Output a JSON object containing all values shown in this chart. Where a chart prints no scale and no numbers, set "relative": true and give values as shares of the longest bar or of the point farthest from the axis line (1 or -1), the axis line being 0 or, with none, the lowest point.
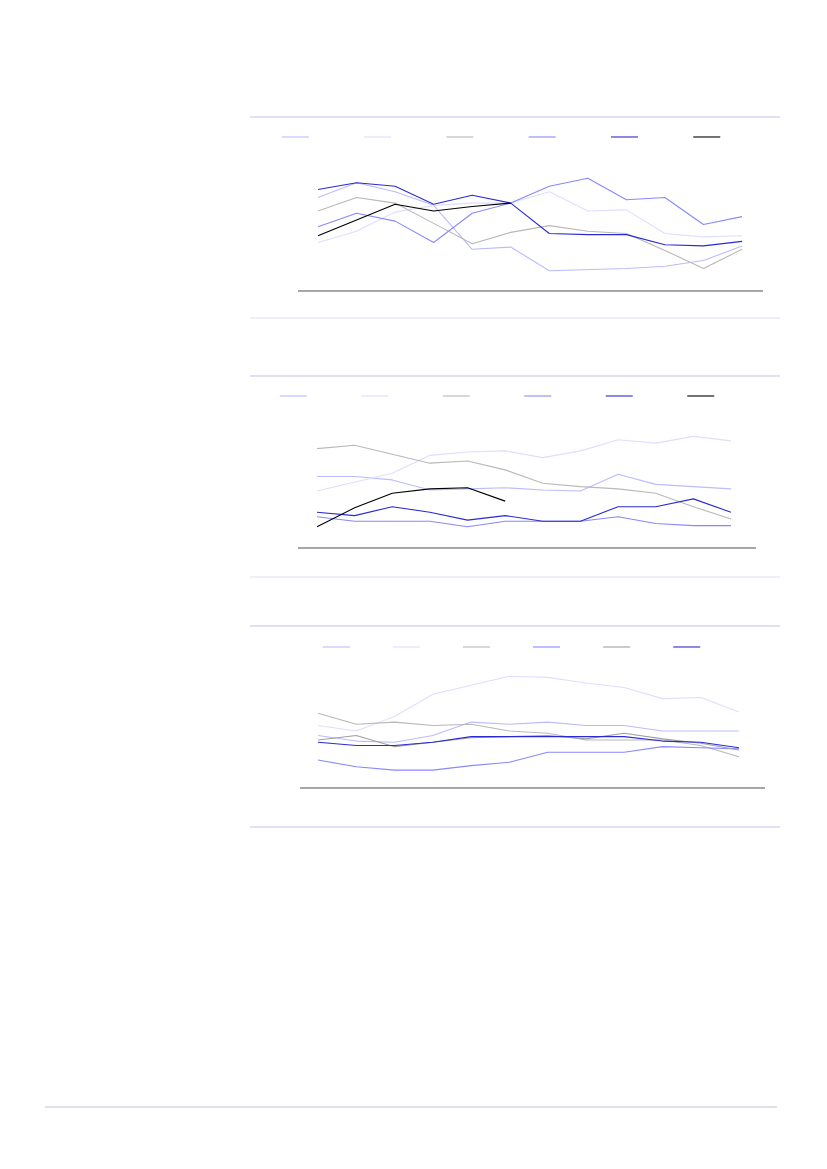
{
  "chart_data": [
    {
      "type": "line",
      "relative": true,
      "categories": [
        null,
        null,
        null,
        null,
        null,
        null,
        null,
        null,
        null,
        null,
        null,
        null
      ],
      "series": [
        {
          "color": "#bbbbff",
          "values": [
            0.83,
            0.96,
            0.88,
            0.76,
            0.37,
            0.39,
            0.18,
            0.19,
            0.2,
            0.22,
            0.27,
            0.4
          ]
        },
        {
          "color": "#dedeff",
          "values": [
            0.43,
            0.53,
            0.7,
            0.76,
            0.78,
            0.78,
            0.88,
            0.71,
            0.72,
            0.51,
            0.48,
            0.49
          ]
        },
        {
          "color": "#b8b8b8",
          "values": [
            0.71,
            0.83,
            0.78,
            0.6,
            0.42,
            0.52,
            0.58,
            0.53,
            0.51,
            0.36,
            0.2,
            0.37
          ]
        },
        {
          "color": "#8888ff",
          "values": [
            0.57,
            0.69,
            0.62,
            0.43,
            0.69,
            0.78,
            0.93,
            1.0,
            0.81,
            0.83,
            0.59,
            0.66
          ]
        },
        {
          "color": "#2a2ad4",
          "values": [
            0.9,
            0.96,
            0.93,
            0.77,
            0.85,
            0.78,
            0.51,
            0.5,
            0.5,
            0.41,
            0.4,
            0.44
          ]
        },
        {
          "color": "#000000",
          "values": [
            0.49,
            0.63,
            0.77,
            0.71,
            0.75,
            0.78,
            null,
            null,
            null,
            null,
            null,
            null
          ]
        }
      ]
    },
    {
      "type": "line",
      "relative": true,
      "categories": [
        null,
        null,
        null,
        null,
        null,
        null,
        null,
        null,
        null,
        null,
        null,
        null
      ],
      "series": [
        {
          "color": "#bbbbff",
          "values": [
            0.64,
            0.64,
            0.61,
            0.52,
            0.53,
            0.54,
            0.52,
            0.51,
            0.66,
            0.57,
            0.55,
            0.53
          ]
        },
        {
          "color": "#dedeff",
          "values": [
            0.51,
            0.59,
            0.67,
            0.83,
            0.86,
            0.87,
            0.81,
            0.87,
            0.97,
            0.94,
            1.0,
            0.96
          ]
        },
        {
          "color": "#b8b8b8",
          "values": [
            0.89,
            0.92,
            0.84,
            0.76,
            0.78,
            0.7,
            0.58,
            0.55,
            0.53,
            0.49,
            0.37,
            0.26
          ]
        },
        {
          "color": "#8888ff",
          "values": [
            0.28,
            0.24,
            0.24,
            0.24,
            0.19,
            0.24,
            0.24,
            0.24,
            0.28,
            0.22,
            0.2,
            0.2
          ]
        },
        {
          "color": "#2a2ad4",
          "values": [
            0.32,
            0.29,
            0.37,
            0.32,
            0.25,
            0.29,
            0.24,
            0.24,
            0.37,
            0.37,
            0.44,
            0.32
          ]
        },
        {
          "color": "#000000",
          "values": [
            0.19,
            0.36,
            0.49,
            0.53,
            0.54,
            0.42,
            null,
            null,
            null,
            null,
            null,
            null
          ]
        }
      ]
    },
    {
      "type": "line",
      "relative": true,
      "categories": [
        null,
        null,
        null,
        null,
        null,
        null,
        null,
        null,
        null,
        null,
        null,
        null
      ],
      "series": [
        {
          "color": "#bbbbff",
          "values": [
            0.47,
            0.42,
            0.41,
            0.47,
            0.59,
            0.57,
            0.59,
            0.56,
            0.56,
            0.51,
            0.51,
            0.51
          ]
        },
        {
          "color": "#dedeff",
          "values": [
            0.56,
            0.51,
            0.64,
            0.84,
            0.92,
            1.0,
            0.99,
            0.94,
            0.9,
            0.8,
            0.81,
            0.68
          ]
        },
        {
          "color": "#b8b8b8",
          "values": [
            0.67,
            0.57,
            0.59,
            0.56,
            0.57,
            0.51,
            0.49,
            0.43,
            0.43,
            0.43,
            0.38,
            0.28
          ]
        },
        {
          "color": "#8888ff",
          "values": [
            0.25,
            0.19,
            0.16,
            0.16,
            0.2,
            0.23,
            0.32,
            0.32,
            0.32,
            0.37,
            0.36,
            0.35
          ]
        },
        {
          "color": "#a0a0a0",
          "values": [
            0.43,
            0.47,
            0.37,
            0.41,
            0.45,
            0.46,
            0.47,
            0.44,
            0.49,
            0.44,
            0.4,
            0.34
          ]
        },
        {
          "color": "#2a2ad4",
          "values": [
            0.41,
            0.38,
            0.38,
            0.41,
            0.46,
            0.46,
            0.46,
            0.46,
            0.46,
            0.42,
            0.41,
            0.36
          ]
        }
      ]
    }
  ]
}
